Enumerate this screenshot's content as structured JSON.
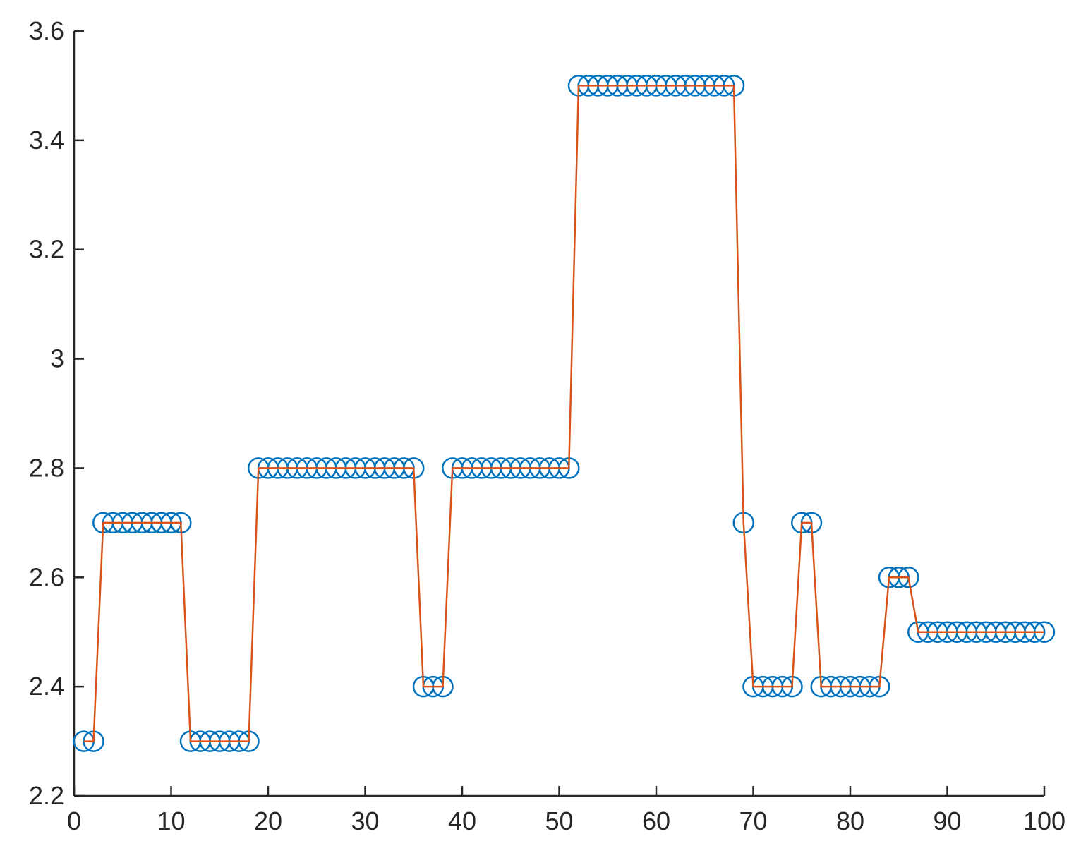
{
  "chart_data": {
    "type": "line",
    "title": "",
    "xlabel": "",
    "ylabel": "",
    "xlim": [
      0,
      100
    ],
    "ylim": [
      2.2,
      3.6
    ],
    "grid": false,
    "legend": "none",
    "x_ticks": [
      0,
      10,
      20,
      30,
      40,
      50,
      60,
      70,
      80,
      90,
      100
    ],
    "y_ticks": [
      2.2,
      2.4,
      2.6,
      2.8,
      3.0,
      3.2,
      3.4,
      3.6
    ],
    "x_tick_labels": [
      "0",
      "10",
      "20",
      "30",
      "40",
      "50",
      "60",
      "70",
      "80",
      "90",
      "100"
    ],
    "y_tick_labels": [
      "2.2",
      "2.4",
      "2.6",
      "2.8",
      "3",
      "3.2",
      "3.4",
      "3.6"
    ],
    "x": [
      1,
      2,
      3,
      4,
      5,
      6,
      7,
      8,
      9,
      10,
      11,
      12,
      13,
      14,
      15,
      16,
      17,
      18,
      19,
      20,
      21,
      22,
      23,
      24,
      25,
      26,
      27,
      28,
      29,
      30,
      31,
      32,
      33,
      34,
      35,
      36,
      37,
      38,
      39,
      40,
      41,
      42,
      43,
      44,
      45,
      46,
      47,
      48,
      49,
      50,
      51,
      52,
      53,
      54,
      55,
      56,
      57,
      58,
      59,
      60,
      61,
      62,
      63,
      64,
      65,
      66,
      67,
      68,
      69,
      70,
      71,
      72,
      73,
      74,
      75,
      76,
      77,
      78,
      79,
      80,
      81,
      82,
      83,
      84,
      85,
      86,
      87,
      88,
      89,
      90,
      91,
      92,
      93,
      94,
      95,
      96,
      97,
      98,
      99,
      100
    ],
    "series": [
      {
        "style": "markers",
        "marker": "circle",
        "color": "#0072BD",
        "values": [
          2.3,
          2.3,
          2.7,
          2.7,
          2.7,
          2.7,
          2.7,
          2.7,
          2.7,
          2.7,
          2.7,
          2.3,
          2.3,
          2.3,
          2.3,
          2.3,
          2.3,
          2.3,
          2.8,
          2.8,
          2.8,
          2.8,
          2.8,
          2.8,
          2.8,
          2.8,
          2.8,
          2.8,
          2.8,
          2.8,
          2.8,
          2.8,
          2.8,
          2.8,
          2.8,
          2.4,
          2.4,
          2.4,
          2.8,
          2.8,
          2.8,
          2.8,
          2.8,
          2.8,
          2.8,
          2.8,
          2.8,
          2.8,
          2.8,
          2.8,
          2.8,
          3.5,
          3.5,
          3.5,
          3.5,
          3.5,
          3.5,
          3.5,
          3.5,
          3.5,
          3.5,
          3.5,
          3.5,
          3.5,
          3.5,
          3.5,
          3.5,
          3.5,
          2.7,
          2.4,
          2.4,
          2.4,
          2.4,
          2.4,
          2.7,
          2.7,
          2.4,
          2.4,
          2.4,
          2.4,
          2.4,
          2.4,
          2.4,
          2.6,
          2.6,
          2.6,
          2.5,
          2.5,
          2.5,
          2.5,
          2.5,
          2.5,
          2.5,
          2.5,
          2.5,
          2.5,
          2.5,
          2.5,
          2.5,
          2.5
        ]
      },
      {
        "style": "line",
        "color": "#D95319",
        "values": [
          2.3,
          2.3,
          2.7,
          2.7,
          2.7,
          2.7,
          2.7,
          2.7,
          2.7,
          2.7,
          2.7,
          2.3,
          2.3,
          2.3,
          2.3,
          2.3,
          2.3,
          2.3,
          2.8,
          2.8,
          2.8,
          2.8,
          2.8,
          2.8,
          2.8,
          2.8,
          2.8,
          2.8,
          2.8,
          2.8,
          2.8,
          2.8,
          2.8,
          2.8,
          2.8,
          2.4,
          2.4,
          2.4,
          2.8,
          2.8,
          2.8,
          2.8,
          2.8,
          2.8,
          2.8,
          2.8,
          2.8,
          2.8,
          2.8,
          2.8,
          2.8,
          3.5,
          3.5,
          3.5,
          3.5,
          3.5,
          3.5,
          3.5,
          3.5,
          3.5,
          3.5,
          3.5,
          3.5,
          3.5,
          3.5,
          3.5,
          3.5,
          3.5,
          2.7,
          2.4,
          2.4,
          2.4,
          2.4,
          2.4,
          2.7,
          2.7,
          2.4,
          2.4,
          2.4,
          2.4,
          2.4,
          2.4,
          2.4,
          2.6,
          2.6,
          2.6,
          2.5,
          2.5,
          2.5,
          2.5,
          2.5,
          2.5,
          2.5,
          2.5,
          2.5,
          2.5,
          2.5,
          2.5,
          2.5,
          2.5
        ]
      }
    ]
  }
}
